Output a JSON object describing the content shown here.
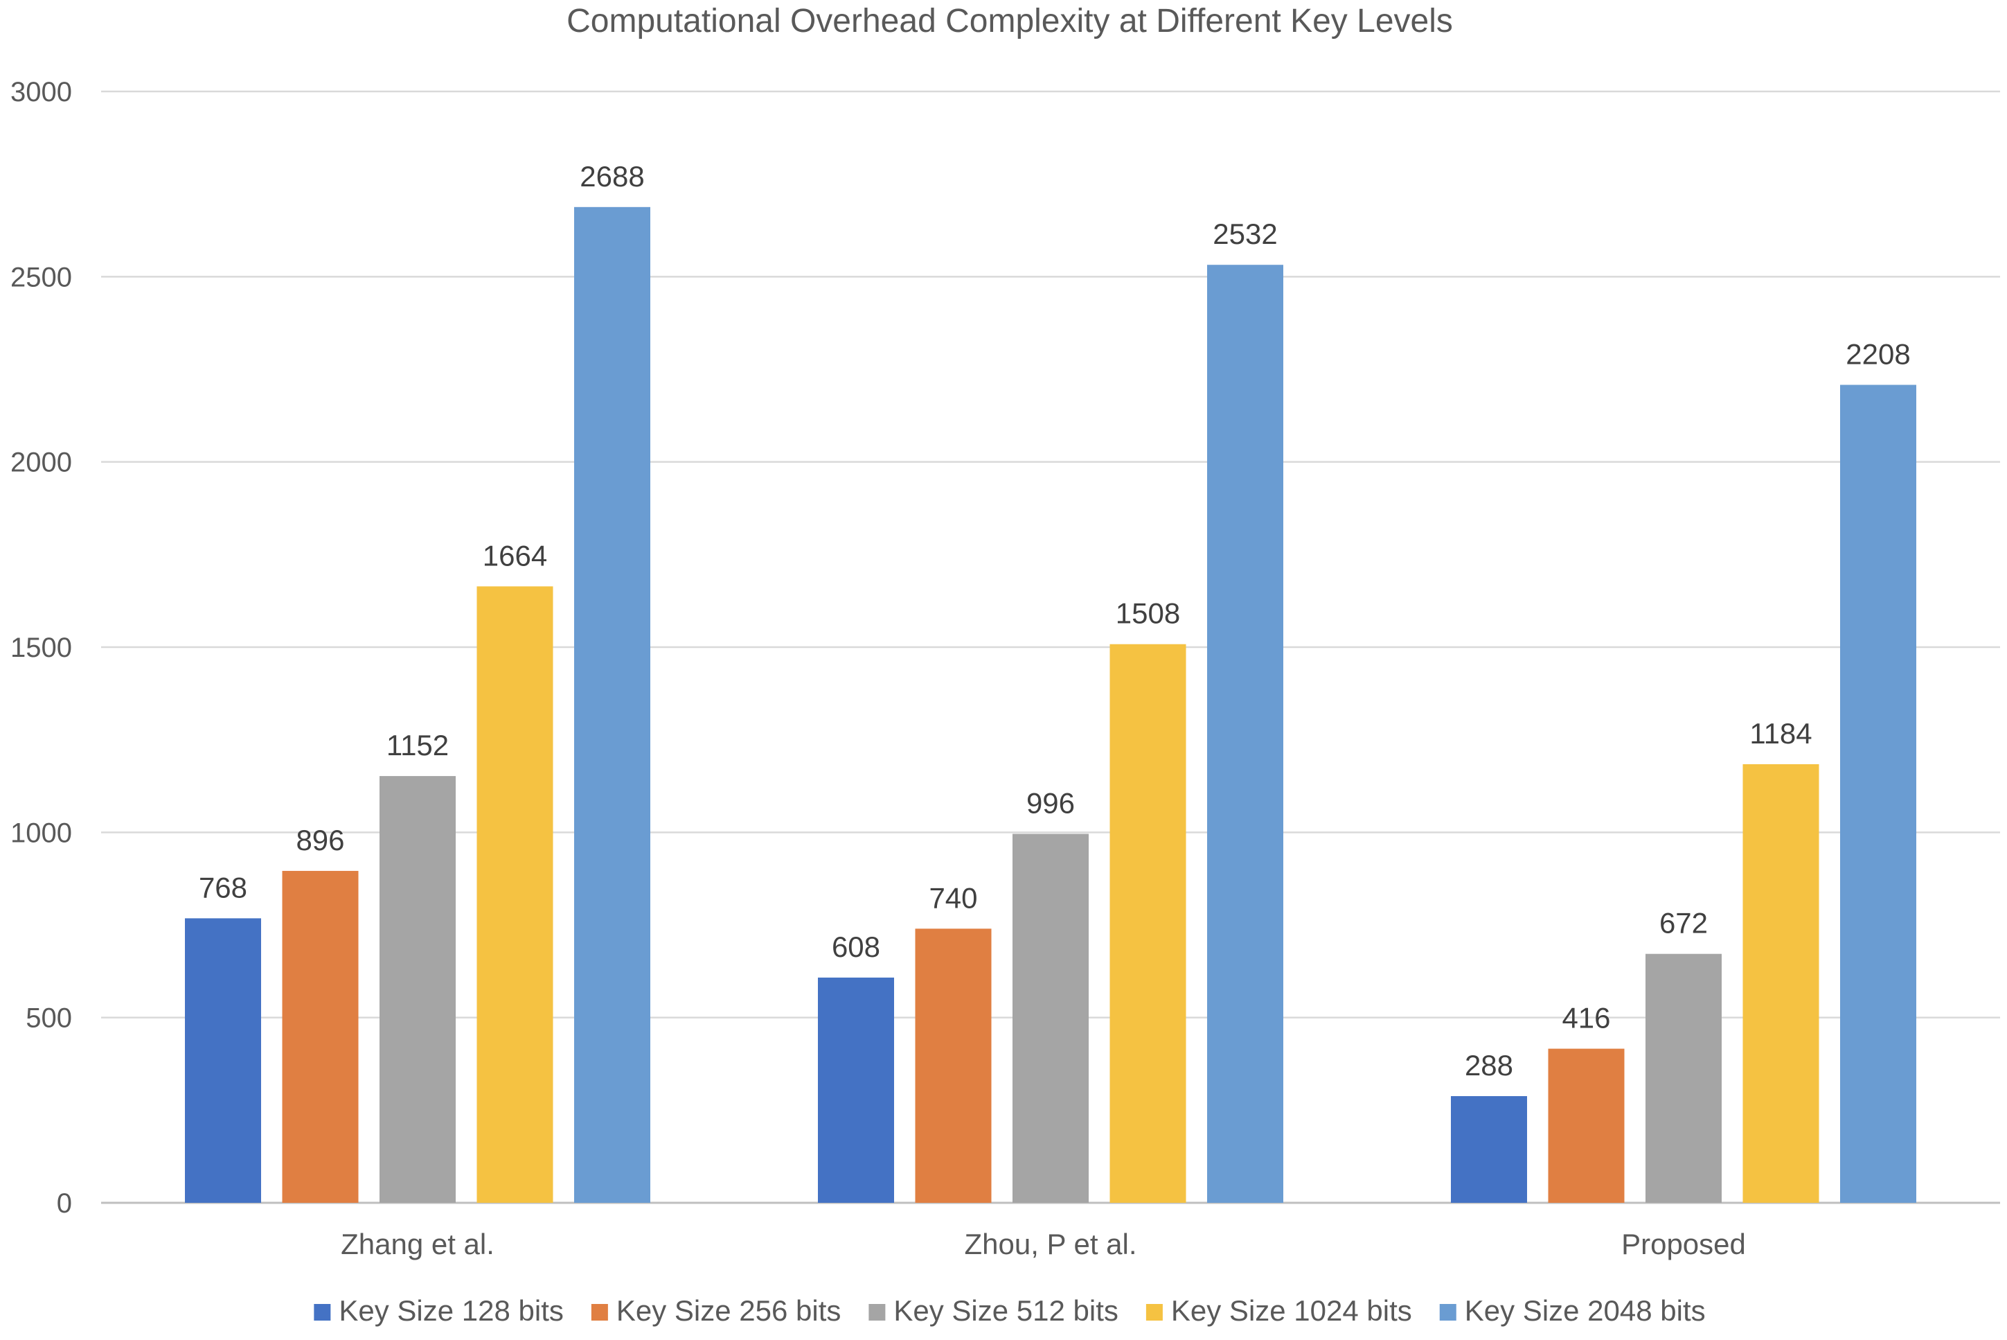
{
  "chart_data": {
    "type": "bar",
    "title": "Computational Overhead Complexity at Different Key Levels",
    "xlabel": "",
    "ylabel": "",
    "ylim": [
      0,
      3000
    ],
    "yticks": [
      0,
      500,
      1000,
      1500,
      2000,
      2500,
      3000
    ],
    "grid": true,
    "legend_position": "bottom",
    "categories": [
      "Zhang et al.",
      "Zhou, P et al.",
      "Proposed"
    ],
    "series": [
      {
        "name": "Key Size 128 bits",
        "color": "#4472C4",
        "values": [
          768,
          608,
          288
        ]
      },
      {
        "name": "Key Size 256 bits",
        "color": "#E07F42",
        "values": [
          896,
          740,
          416
        ]
      },
      {
        "name": "Key Size 512 bits",
        "color": "#A5A5A5",
        "values": [
          1152,
          996,
          672
        ]
      },
      {
        "name": "Key Size 1024 bits",
        "color": "#F5C242",
        "values": [
          1664,
          1508,
          1184
        ]
      },
      {
        "name": "Key Size 2048 bits",
        "color": "#6A9CD2",
        "values": [
          2688,
          2532,
          2208
        ]
      }
    ]
  }
}
